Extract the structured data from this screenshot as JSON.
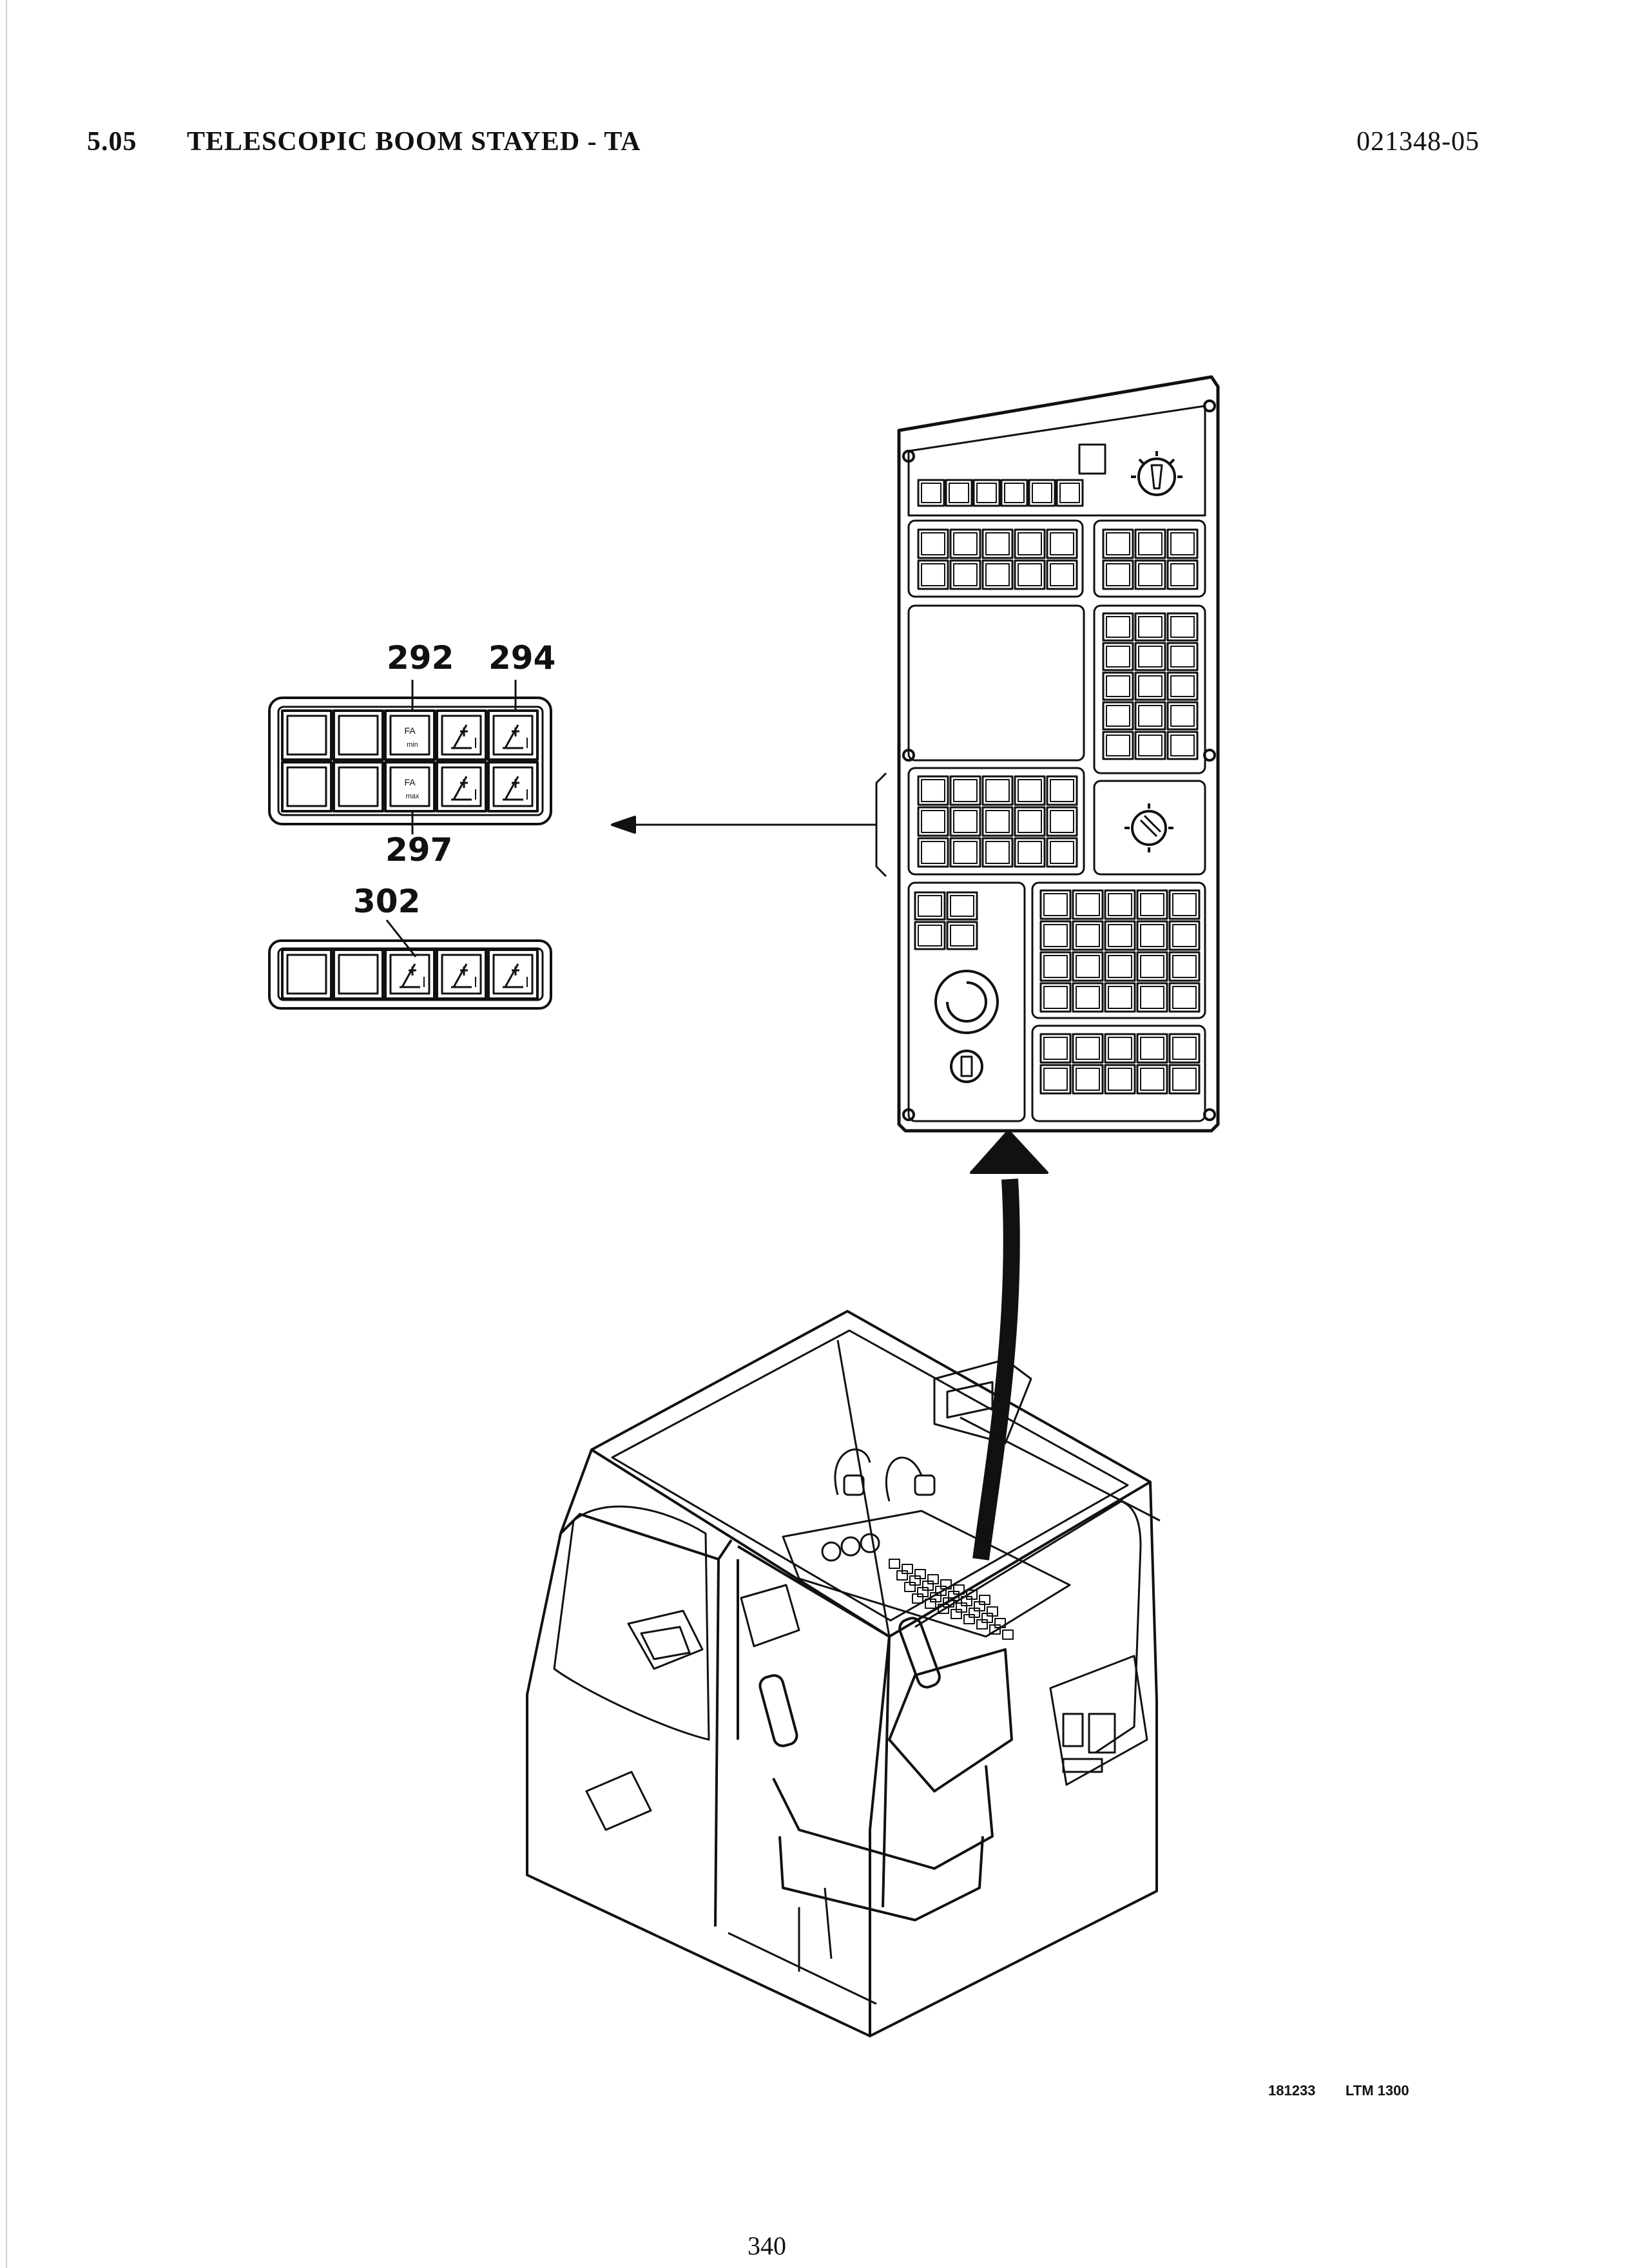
{
  "header": {
    "section_number": "5.05",
    "section_title": "TELESCOPIC BOOM STAYED - TA",
    "document_code": "021348-05"
  },
  "callouts": {
    "c292": "292",
    "c294": "294",
    "c297": "297",
    "c302": "302"
  },
  "key_labels": {
    "fa": "FA",
    "min": "min",
    "max": "max"
  },
  "footer": {
    "drawing_number": "181233",
    "model": "LTM 1300",
    "page_number": "340"
  },
  "colors": {
    "ink": "#111111",
    "paper": "#ffffff"
  }
}
